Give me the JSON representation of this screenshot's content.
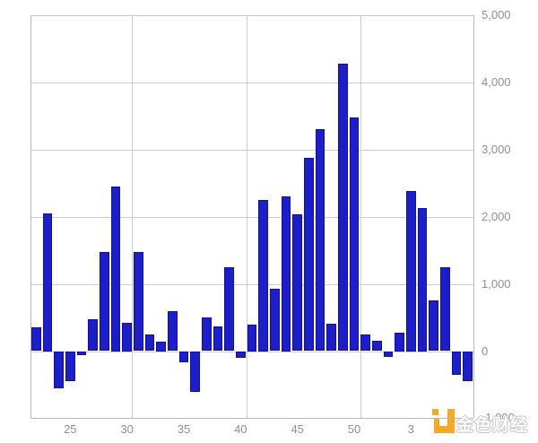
{
  "chart_data": {
    "type": "bar",
    "title": "",
    "x_axis": {
      "unit": "week-number",
      "tick_labels": [
        "25",
        "30",
        "35",
        "40",
        "45",
        "50",
        "3"
      ],
      "tick_bar_indices": [
        3,
        8,
        13,
        18,
        23,
        28,
        33
      ]
    },
    "y_axis": {
      "side": "right",
      "range": [
        -1000,
        5000
      ],
      "tick_labels": [
        "5,000",
        "4,000",
        "3,000",
        "2,000",
        "1,000",
        "0",
        "-1,000"
      ],
      "tick_values": [
        5000,
        4000,
        3000,
        2000,
        1000,
        0,
        -1000
      ]
    },
    "grid": true,
    "legend": "none",
    "series": [
      {
        "name": "weekly-value",
        "color": "#1c1ecb",
        "border_color": "#10109a",
        "points": [
          {
            "week": 22,
            "value": 350
          },
          {
            "week": 23,
            "value": 2050
          },
          {
            "week": 24,
            "value": -550
          },
          {
            "week": 25,
            "value": -440
          },
          {
            "week": 26,
            "value": -60
          },
          {
            "week": 27,
            "value": 470
          },
          {
            "week": 28,
            "value": 1470
          },
          {
            "week": 29,
            "value": 2450
          },
          {
            "week": 30,
            "value": 420
          },
          {
            "week": 31,
            "value": 1480
          },
          {
            "week": 32,
            "value": 250
          },
          {
            "week": 33,
            "value": 140
          },
          {
            "week": 34,
            "value": 600
          },
          {
            "week": 35,
            "value": -160
          },
          {
            "week": 36,
            "value": -610
          },
          {
            "week": 37,
            "value": 500
          },
          {
            "week": 38,
            "value": 370
          },
          {
            "week": 39,
            "value": 1250
          },
          {
            "week": 40,
            "value": -100
          },
          {
            "week": 41,
            "value": 400
          },
          {
            "week": 42,
            "value": 2250
          },
          {
            "week": 43,
            "value": 930
          },
          {
            "week": 44,
            "value": 2310
          },
          {
            "week": 45,
            "value": 2040
          },
          {
            "week": 46,
            "value": 2880
          },
          {
            "week": 47,
            "value": 3300
          },
          {
            "week": 48,
            "value": 410
          },
          {
            "week": 49,
            "value": 4280
          },
          {
            "week": 50,
            "value": 3480
          },
          {
            "week": 51,
            "value": 250
          },
          {
            "week": 52,
            "value": 150
          },
          {
            "week": 1,
            "value": -90
          },
          {
            "week": 2,
            "value": 280
          },
          {
            "week": 3,
            "value": 2390
          },
          {
            "week": 4,
            "value": 2130
          },
          {
            "week": 5,
            "value": 750
          },
          {
            "week": 6,
            "value": 1250
          },
          {
            "week": 7,
            "value": -350
          },
          {
            "week": 8,
            "value": -450
          }
        ]
      }
    ],
    "colors": {
      "gridline": "#cccccc",
      "axis_label": "#8f8f8f",
      "background": "#ffffff"
    }
  },
  "watermark": {
    "text": "金色财经",
    "logo_color": "#f8a824"
  }
}
